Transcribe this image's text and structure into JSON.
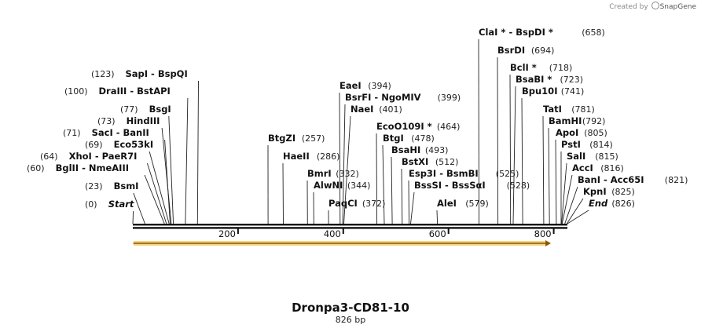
{
  "credit": {
    "prefix": "Created by",
    "brand": "SnapGene"
  },
  "plasmid": {
    "name": "Dronpa3-CD81-10",
    "length_label": "826 bp",
    "length": 826
  },
  "colors": {
    "backbone": "#111111",
    "feature_fill": "#f2c45c",
    "feature_stroke": "#d19a1e",
    "feature_arrow": "#8a5a00",
    "tick_line": "#222222"
  },
  "axis_ticks": [
    200,
    400,
    600,
    800
  ],
  "sites": [
    {
      "label": "Start",
      "pos": 0,
      "num_label": "(0)",
      "num_side": "left",
      "style": "italic"
    },
    {
      "label": "BsmI",
      "pos": 23,
      "num_label": "(23)",
      "num_side": "left"
    },
    {
      "label": "BglII  -  NmeAIII",
      "pos": 60,
      "num_label": "(60)",
      "num_side": "left"
    },
    {
      "label": "XhoI  -  PaeR7I",
      "pos": 64,
      "num_label": "(64)",
      "num_side": "left"
    },
    {
      "label": "Eco53kI",
      "pos": 69,
      "num_label": "(69)",
      "num_side": "left"
    },
    {
      "label": "SacI  -  BanII",
      "pos": 71,
      "num_label": "(71)",
      "num_side": "left"
    },
    {
      "label": "HindIII",
      "pos": 73,
      "num_label": "(73)",
      "num_side": "left"
    },
    {
      "label": "BsgI",
      "pos": 77,
      "num_label": "(77)",
      "num_side": "left"
    },
    {
      "label": "DraIII  -  BstAPI",
      "pos": 100,
      "num_label": "(100)",
      "num_side": "left"
    },
    {
      "label": "SapI  -  BspQI",
      "pos": 123,
      "num_label": "(123)",
      "num_side": "left"
    },
    {
      "label": "BtgZI",
      "pos": 257,
      "num_label": "(257)",
      "num_side": "right"
    },
    {
      "label": "HaeII",
      "pos": 286,
      "num_label": "(286)",
      "num_side": "right"
    },
    {
      "label": "BmrI",
      "pos": 332,
      "num_label": "(332)",
      "num_side": "right"
    },
    {
      "label": "AlwNI",
      "pos": 344,
      "num_label": "(344)",
      "num_side": "right"
    },
    {
      "label": "PaqCI",
      "pos": 372,
      "num_label": "(372)",
      "num_side": "right"
    },
    {
      "label": "EaeI",
      "pos": 394,
      "num_label": "(394)",
      "num_side": "right"
    },
    {
      "label": "BsrFI  -  NgoMIV",
      "pos": 399,
      "num_label": "(399)",
      "num_side": "right"
    },
    {
      "label": "NaeI",
      "pos": 401,
      "num_label": "(401)",
      "num_side": "right"
    },
    {
      "label": "EcoO109I *",
      "pos": 464,
      "num_label": "(464)",
      "num_side": "right"
    },
    {
      "label": "BtgI",
      "pos": 478,
      "num_label": "(478)",
      "num_side": "right"
    },
    {
      "label": "BsaHI",
      "pos": 493,
      "num_label": "(493)",
      "num_side": "right"
    },
    {
      "label": "BstXI",
      "pos": 512,
      "num_label": "(512)",
      "num_side": "right"
    },
    {
      "label": "Esp3I  -  BsmBI",
      "pos": 525,
      "num_label": "(525)",
      "num_side": "right"
    },
    {
      "label": "BssSI  -  BssSαI",
      "pos": 528,
      "num_label": "(528)",
      "num_side": "right"
    },
    {
      "label": "AleI",
      "pos": 579,
      "num_label": "(579)",
      "num_side": "right"
    },
    {
      "label": "ClaI *  -  BspDI *",
      "pos": 658,
      "num_label": "(658)",
      "num_side": "right"
    },
    {
      "label": "BsrDI",
      "pos": 694,
      "num_label": "(694)",
      "num_side": "right"
    },
    {
      "label": "BclI *",
      "pos": 718,
      "num_label": "(718)",
      "num_side": "right"
    },
    {
      "label": "BsaBI *",
      "pos": 723,
      "num_label": "(723)",
      "num_side": "right"
    },
    {
      "label": "Bpu10I",
      "pos": 741,
      "num_label": "(741)",
      "num_side": "right"
    },
    {
      "label": "TatI",
      "pos": 781,
      "num_label": "(781)",
      "num_side": "right"
    },
    {
      "label": "BamHI",
      "pos": 792,
      "num_label": "(792)",
      "num_side": "right"
    },
    {
      "label": "ApoI",
      "pos": 805,
      "num_label": "(805)",
      "num_side": "right"
    },
    {
      "label": "PstI",
      "pos": 814,
      "num_label": "(814)",
      "num_side": "right"
    },
    {
      "label": "SalI",
      "pos": 815,
      "num_label": "(815)",
      "num_side": "right"
    },
    {
      "label": "AccI",
      "pos": 816,
      "num_label": "(816)",
      "num_side": "right"
    },
    {
      "label": "BanI  -  Acc65I",
      "pos": 821,
      "num_label": "(821)",
      "num_side": "right"
    },
    {
      "label": "KpnI",
      "pos": 825,
      "num_label": "(825)",
      "num_side": "right"
    },
    {
      "label": "End",
      "pos": 826,
      "num_label": "(826)",
      "num_side": "right",
      "style": "italic"
    }
  ],
  "feature": {
    "start": 1,
    "end": 826,
    "direction": "forward"
  }
}
